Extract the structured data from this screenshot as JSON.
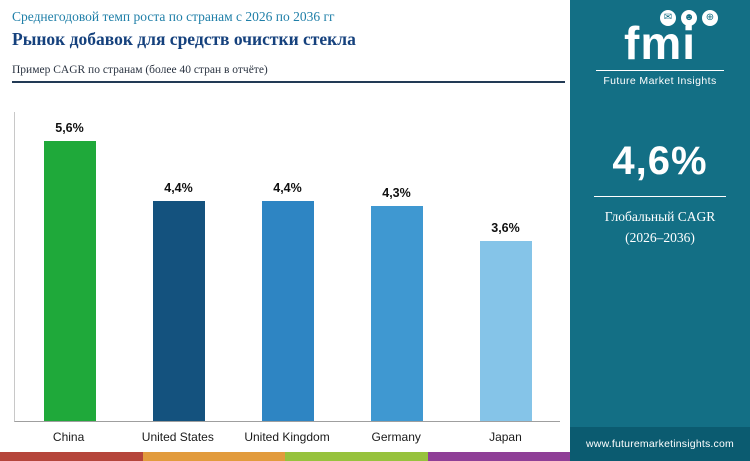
{
  "header": {
    "line1": "Среднегодовой темп роста по странам с 2026 по 2036 гг",
    "title": "Рынок добавок для средств очистки стекла",
    "note": "Пример CAGR по странам (более 40 стран в отчёте)"
  },
  "chart_data": {
    "type": "bar",
    "title": "Рынок добавок для средств очистки стекла — CAGR по странам, 2026–2036",
    "categories": [
      "China",
      "United States",
      "United Kingdom",
      "Germany",
      "Japan"
    ],
    "values": [
      5.6,
      4.4,
      4.4,
      4.3,
      3.6
    ],
    "value_labels": [
      "5,6%",
      "4,4%",
      "4,4%",
      "4,3%",
      "3,6%"
    ],
    "bar_colors": [
      "#1fa93a",
      "#14527e",
      "#2e85c3",
      "#3f98d1",
      "#85c4e8"
    ],
    "xlabel": "",
    "ylabel": "",
    "ylim": [
      0,
      6.2
    ],
    "grid": false,
    "legend": "none"
  },
  "sidebar": {
    "bg_color": "#136f85",
    "logo_text": "fmi",
    "brand": "Future Market Insights",
    "icons": [
      {
        "name": "mail-icon",
        "glyph": "✉"
      },
      {
        "name": "person-icon",
        "glyph": "☻"
      },
      {
        "name": "globe-icon",
        "glyph": "⊕"
      }
    ],
    "global_cagr_value": "4,6%",
    "global_cagr_label_line1": "Глобальный CAGR",
    "global_cagr_label_line2": "(2026–2036)",
    "website": "www.futuremarketinsights.com",
    "web_strip_color": "#0b5b70"
  },
  "footer_stripe_colors": [
    "#b5453b",
    "#e29b3d",
    "#97c23d",
    "#8f3f97"
  ]
}
